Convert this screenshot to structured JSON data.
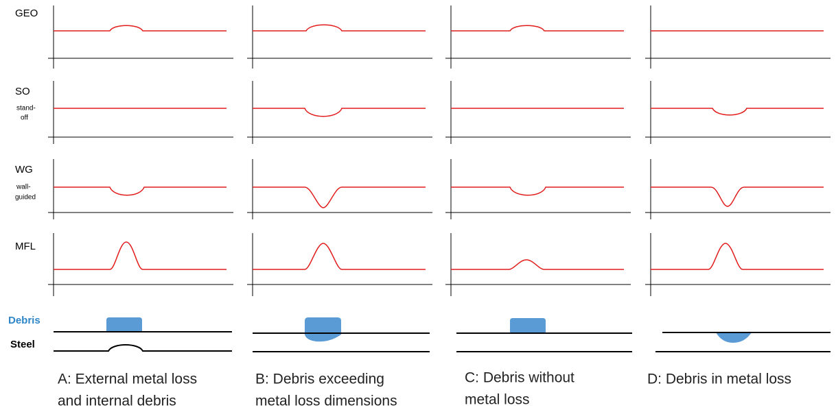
{
  "row_labels": [
    {
      "label": "GEO"
    },
    {
      "label": "SO",
      "sublabel": [
        "stand-",
        "off"
      ]
    },
    {
      "label": "WG",
      "sublabel": [
        "wall-",
        "guided"
      ]
    },
    {
      "label": "MFL"
    }
  ],
  "cross_section": {
    "debris": "Debris",
    "steel": "Steel"
  },
  "captions": [
    [
      "A: External metal loss",
      "and internal debris"
    ],
    [
      "B: Debris exceeding",
      "metal loss dimensions"
    ],
    [
      "C: Debris without",
      "metal loss"
    ],
    [
      "D: Debris in metal loss"
    ]
  ]
}
